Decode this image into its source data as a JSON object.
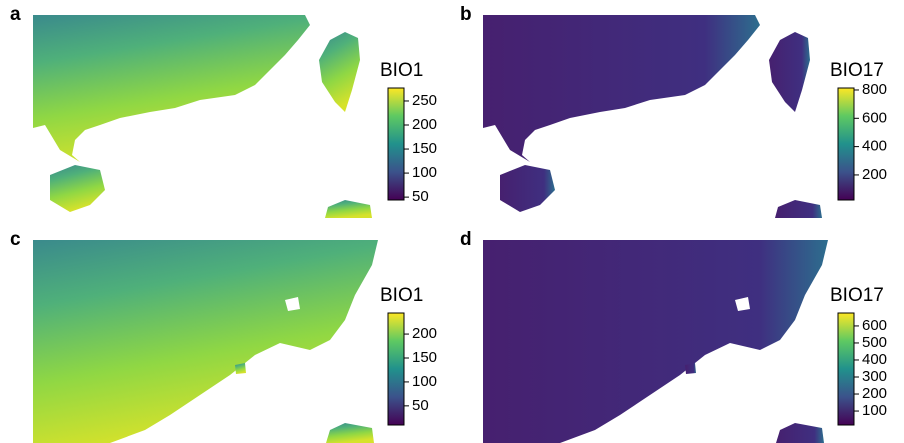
{
  "panels": [
    {
      "label": "a",
      "legend": {
        "title": "BIO1",
        "clim": [
          44,
          277
        ],
        "ticks": [
          50,
          100,
          150,
          200,
          250
        ]
      }
    },
    {
      "label": "b",
      "legend": {
        "title": "BIO17",
        "clim": [
          23,
          814
        ],
        "ticks": [
          200,
          400,
          600,
          800
        ]
      }
    },
    {
      "label": "c",
      "legend": {
        "title": "BIO1",
        "clim": [
          10,
          244
        ],
        "ticks": [
          50,
          100,
          150,
          200
        ]
      }
    },
    {
      "label": "d",
      "legend": {
        "title": "BIO17",
        "clim": [
          18,
          676
        ],
        "ticks": [
          100,
          200,
          300,
          400,
          500,
          600
        ]
      }
    }
  ]
}
